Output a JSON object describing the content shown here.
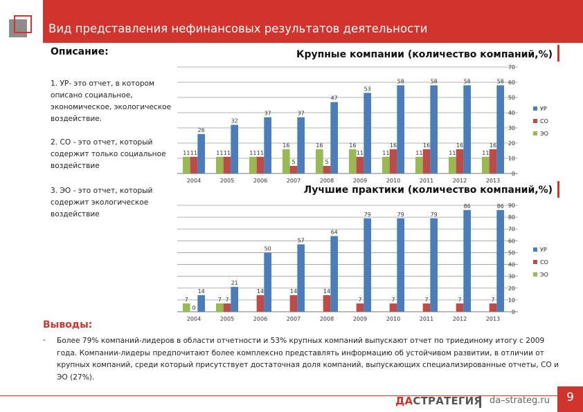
{
  "header": {
    "title": "Вид представления нефинансовых результатов деятельности"
  },
  "description": {
    "label": "Описание:",
    "items": [
      "1. УР- это отчет, в котором описано социальное, экономическое, экологическое воздействие.",
      "2. СО - это отчет, который содержит только социальное воздействие",
      "3. ЭО - это отчет, который содержит экологическое воздействие"
    ]
  },
  "colors": {
    "UR": "#4a7ebb",
    "CO": "#be4b48",
    "EO": "#98b954",
    "accent": "#d1342c"
  },
  "chart_data": [
    {
      "type": "bar",
      "title": "Крупные компании (количество компаний,%)",
      "categories": [
        "2004",
        "2005",
        "2006",
        "2007",
        "2008",
        "2009",
        "2010",
        "2011",
        "2012",
        "2013"
      ],
      "series": [
        {
          "name": "УР",
          "values": [
            26,
            32,
            37,
            37,
            47,
            53,
            58,
            58,
            58,
            58
          ]
        },
        {
          "name": "СО",
          "values": [
            11,
            11,
            11,
            5,
            5,
            11,
            16,
            16,
            16,
            16
          ]
        },
        {
          "name": "ЭО",
          "values": [
            11,
            11,
            11,
            16,
            16,
            16,
            11,
            11,
            11,
            11
          ]
        }
      ],
      "yticks": [
        0,
        10,
        20,
        30,
        40,
        50,
        60,
        70
      ],
      "ylim": [
        0,
        70
      ],
      "legend": "right"
    },
    {
      "type": "bar",
      "title": "Лучшие практики (количество компаний,%)",
      "categories": [
        "2004",
        "2005",
        "2006",
        "2007",
        "2008",
        "2009",
        "2010",
        "2011",
        "2012",
        "2013"
      ],
      "series": [
        {
          "name": "УР",
          "values": [
            14,
            21,
            50,
            57,
            64,
            79,
            79,
            79,
            86,
            86
          ]
        },
        {
          "name": "СО",
          "values": [
            0,
            7,
            14,
            14,
            14,
            7,
            7,
            7,
            7,
            7
          ]
        },
        {
          "name": "ЭО",
          "values": [
            7,
            7,
            null,
            null,
            null,
            null,
            null,
            null,
            null,
            null
          ]
        }
      ],
      "yticks": [
        0,
        10,
        20,
        30,
        40,
        50,
        60,
        70,
        80,
        90
      ],
      "ylim": [
        0,
        90
      ],
      "legend": "right"
    }
  ],
  "conclusions": {
    "label": "Выводы:",
    "bullet": "-",
    "text": "Более 79% компаний-лидеров в области отчетности и 53% крупных компаний выпускают отчет по триединому итогу с 2009 года. Компании-лидеры предпочитают более комплексно представлять информацию об устойчивом развитии, в отличии от крупных компаний, среди который присутствует достаточная доля компаний, выпускающих специализированные отчеты, СО и ЭО (27%)."
  },
  "footer": {
    "logo_prefix": "ДА",
    "logo_main": "СТРАТЕГИЯ",
    "site": "da–strateg.ru",
    "page": "9"
  }
}
